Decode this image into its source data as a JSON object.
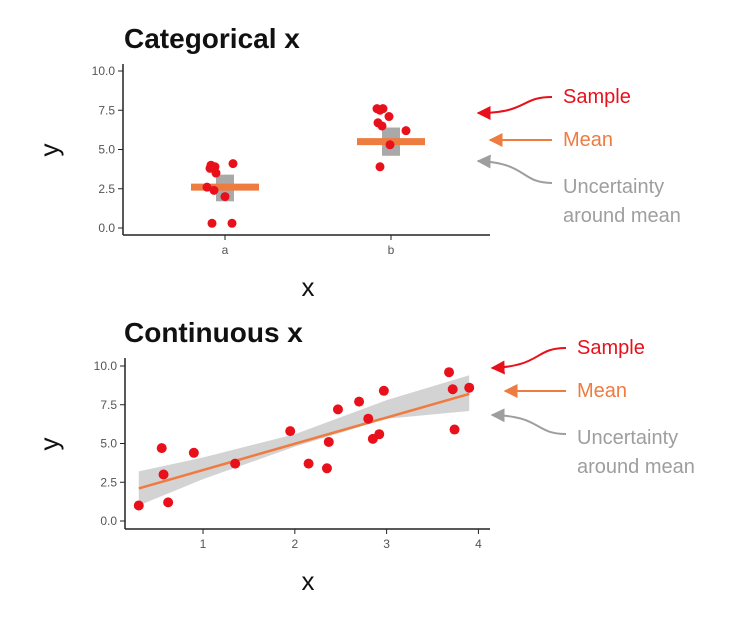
{
  "colors": {
    "sample": "#e8101a",
    "mean": "#ee7b3f",
    "uncertainty": "#9e9e9e",
    "band": "#d3d3d3",
    "axis": "#222222",
    "tick_label": "#555555"
  },
  "annotations": {
    "sample": "Sample",
    "mean": "Mean",
    "uncertainty_line1": "Uncertainty",
    "uncertainty_line2": "around mean"
  },
  "chart_data": [
    {
      "type": "scatter",
      "title": "Categorical x",
      "xlabel": "x",
      "ylabel": "y",
      "categories": [
        "a",
        "b"
      ],
      "ylim": [
        0,
        10
      ],
      "yticks": [
        "0.0",
        "2.5",
        "5.0",
        "7.5",
        "10.0"
      ],
      "grid": false,
      "points": [
        {
          "cat": "a",
          "y": 4.0
        },
        {
          "cat": "a",
          "y": 3.9
        },
        {
          "cat": "a",
          "y": 3.8
        },
        {
          "cat": "a",
          "y": 3.5
        },
        {
          "cat": "a",
          "y": 2.6
        },
        {
          "cat": "a",
          "y": 2.4
        },
        {
          "cat": "a",
          "y": 2.0
        },
        {
          "cat": "a",
          "y": 4.1
        },
        {
          "cat": "a",
          "y": 0.3
        },
        {
          "cat": "a",
          "y": 0.3
        },
        {
          "cat": "b",
          "y": 7.6
        },
        {
          "cat": "b",
          "y": 7.5
        },
        {
          "cat": "b",
          "y": 7.1
        },
        {
          "cat": "b",
          "y": 7.6
        },
        {
          "cat": "b",
          "y": 6.7
        },
        {
          "cat": "b",
          "y": 6.5
        },
        {
          "cat": "b",
          "y": 6.2
        },
        {
          "cat": "b",
          "y": 5.3
        },
        {
          "cat": "b",
          "y": 3.9
        }
      ],
      "means": [
        {
          "cat": "a",
          "mean": 2.6,
          "lower": 1.7,
          "upper": 3.4
        },
        {
          "cat": "b",
          "mean": 5.5,
          "lower": 4.6,
          "upper": 6.4
        }
      ]
    },
    {
      "type": "scatter",
      "title": "Continuous x",
      "xlabel": "x",
      "ylabel": "y",
      "xlim": [
        0.15,
        4.05
      ],
      "ylim": [
        0,
        10
      ],
      "xticks": [
        "1",
        "2",
        "3",
        "4"
      ],
      "yticks": [
        "0.0",
        "2.5",
        "5.0",
        "7.5",
        "10.0"
      ],
      "grid": false,
      "points": [
        {
          "x": 0.3,
          "y": 1.0
        },
        {
          "x": 0.55,
          "y": 4.7
        },
        {
          "x": 0.57,
          "y": 3.0
        },
        {
          "x": 0.62,
          "y": 1.2
        },
        {
          "x": 0.9,
          "y": 4.4
        },
        {
          "x": 1.35,
          "y": 3.7
        },
        {
          "x": 1.95,
          "y": 5.8
        },
        {
          "x": 2.15,
          "y": 3.7
        },
        {
          "x": 2.35,
          "y": 3.4
        },
        {
          "x": 2.37,
          "y": 5.1
        },
        {
          "x": 2.47,
          "y": 7.2
        },
        {
          "x": 2.7,
          "y": 7.7
        },
        {
          "x": 2.8,
          "y": 6.6
        },
        {
          "x": 2.85,
          "y": 5.3
        },
        {
          "x": 2.92,
          "y": 5.6
        },
        {
          "x": 2.97,
          "y": 8.4
        },
        {
          "x": 3.68,
          "y": 9.6
        },
        {
          "x": 3.72,
          "y": 8.5
        },
        {
          "x": 3.74,
          "y": 5.9
        },
        {
          "x": 3.9,
          "y": 8.6
        }
      ],
      "fit": {
        "x": [
          0.3,
          3.9
        ],
        "y": [
          2.1,
          8.2
        ]
      },
      "band": {
        "x": [
          0.3,
          1.0,
          2.0,
          3.0,
          3.9
        ],
        "lower": [
          1.0,
          2.7,
          4.8,
          6.6,
          7.1
        ],
        "upper": [
          3.2,
          4.1,
          5.6,
          7.8,
          9.4
        ]
      }
    }
  ]
}
